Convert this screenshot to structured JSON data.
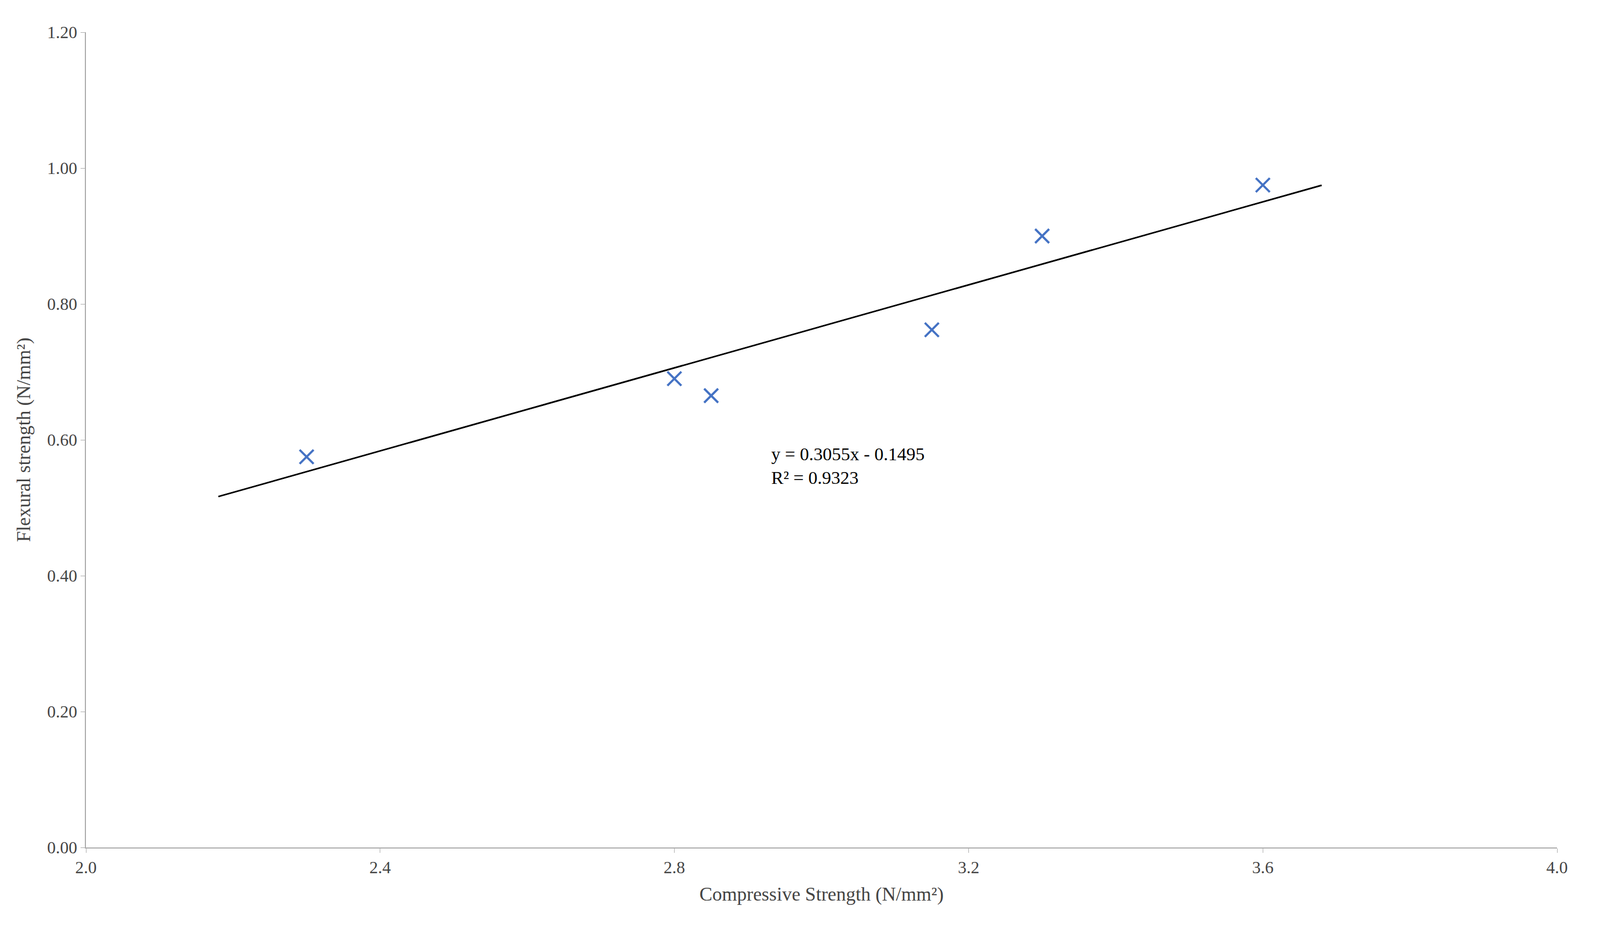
{
  "chart_data": {
    "type": "scatter",
    "xlabel": "Compressive Strength (N/mm²)",
    "ylabel": "Flexural strength (N/mm²)",
    "series": [
      {
        "type": "scatter",
        "marker": "x",
        "color": "#4472C4",
        "x": [
          2.3,
          2.8,
          2.85,
          3.15,
          3.3,
          3.6
        ],
        "values": [
          0.575,
          0.69,
          0.665,
          0.762,
          0.9,
          0.975
        ]
      },
      {
        "type": "line",
        "line_style": "solid",
        "color": "#000000",
        "x": [
          2.18,
          3.68
        ],
        "values": [
          0.51649,
          0.97474
        ]
      }
    ],
    "annotations": [
      {
        "text": [
          "y = 0.3055x - 0.1495",
          "R² = 0.9323"
        ],
        "x": 2.93,
        "y": 0.595
      }
    ],
    "xlim": [
      2.0,
      4.0
    ],
    "ylim": [
      0.0,
      1.2
    ],
    "xticks": [
      {
        "value": 2.0,
        "label": "2.0"
      },
      2.4,
      2.8,
      3.2,
      3.6,
      {
        "value": 4.0,
        "label": "4.0"
      }
    ],
    "yticks": [
      {
        "value": 0.0,
        "label": "0.00"
      },
      {
        "value": 0.2,
        "label": "0.20"
      },
      {
        "value": 0.4,
        "label": "0.40"
      },
      {
        "value": 0.6,
        "label": "0.60"
      },
      {
        "value": 0.8,
        "label": "0.80"
      },
      {
        "value": 1.0,
        "label": "1.00"
      },
      {
        "value": 1.2,
        "label": "1.20"
      }
    ],
    "grid": false
  }
}
